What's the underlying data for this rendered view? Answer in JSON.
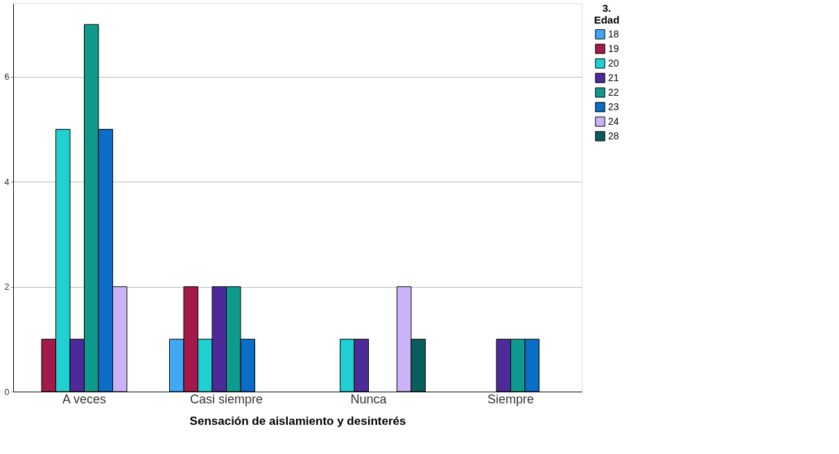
{
  "chart_data": {
    "type": "bar",
    "xlabel": "Sensación de aislamiento y desinterés",
    "legend_title": "3.\nEdad",
    "categories": [
      "A veces",
      "Casi siempre",
      "Nunca",
      "Siempre"
    ],
    "series": [
      {
        "name": "18",
        "color": "#3fa9f5",
        "values": [
          null,
          1,
          null,
          null
        ]
      },
      {
        "name": "19",
        "color": "#a3194b",
        "values": [
          1,
          2,
          null,
          null
        ]
      },
      {
        "name": "20",
        "color": "#20d0d0",
        "values": [
          5,
          1,
          1,
          null
        ]
      },
      {
        "name": "21",
        "color": "#4e2a98",
        "values": [
          1,
          2,
          1,
          1
        ]
      },
      {
        "name": "22",
        "color": "#0e9a8c",
        "values": [
          7,
          2,
          null,
          1
        ]
      },
      {
        "name": "23",
        "color": "#0a6dc6",
        "values": [
          5,
          1,
          null,
          1
        ]
      },
      {
        "name": "24",
        "color": "#cbb3f7",
        "values": [
          2,
          null,
          2,
          null
        ]
      },
      {
        "name": "28",
        "color": "#0b5c5c",
        "values": [
          null,
          null,
          1,
          null
        ]
      }
    ],
    "ylim": [
      0,
      7.4
    ],
    "yticks": [
      0,
      2,
      4,
      6
    ],
    "grid": "y",
    "legend": "top right"
  }
}
